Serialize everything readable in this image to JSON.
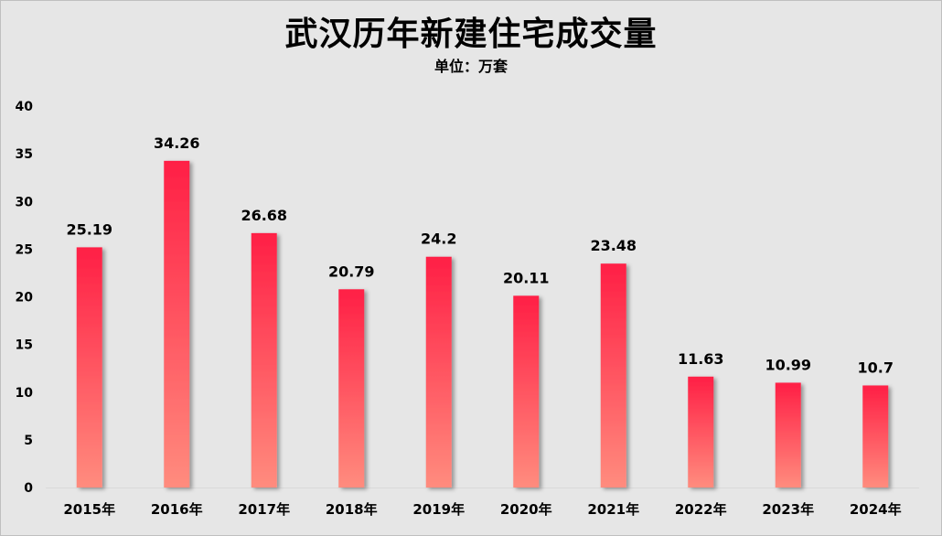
{
  "chart_data": {
    "type": "bar",
    "title": "武汉历年新建住宅成交量",
    "subtitle": "单位：万套",
    "categories": [
      "2015年",
      "2016年",
      "2017年",
      "2018年",
      "2019年",
      "2020年",
      "2021年",
      "2022年",
      "2023年",
      "2024年"
    ],
    "values": [
      25.19,
      34.26,
      26.68,
      20.79,
      24.2,
      20.11,
      23.48,
      11.63,
      10.99,
      10.7
    ],
    "data_labels": [
      "25.19",
      "34.26",
      "26.68",
      "20.79",
      "24.2",
      "20.11",
      "23.48",
      "11.63",
      "10.99",
      "10.7"
    ],
    "y_ticks": [
      "0",
      "5",
      "10",
      "15",
      "20",
      "25",
      "30",
      "35",
      "40"
    ],
    "ylim": [
      0,
      40
    ],
    "xlabel": "",
    "ylabel": "",
    "grid": false,
    "legend": "none",
    "colors": {
      "bar_top": "#ff1f45",
      "bar_bottom": "#ff8c7e",
      "background": "#e6e6e6",
      "axis_line": "#d9d9d9"
    }
  }
}
